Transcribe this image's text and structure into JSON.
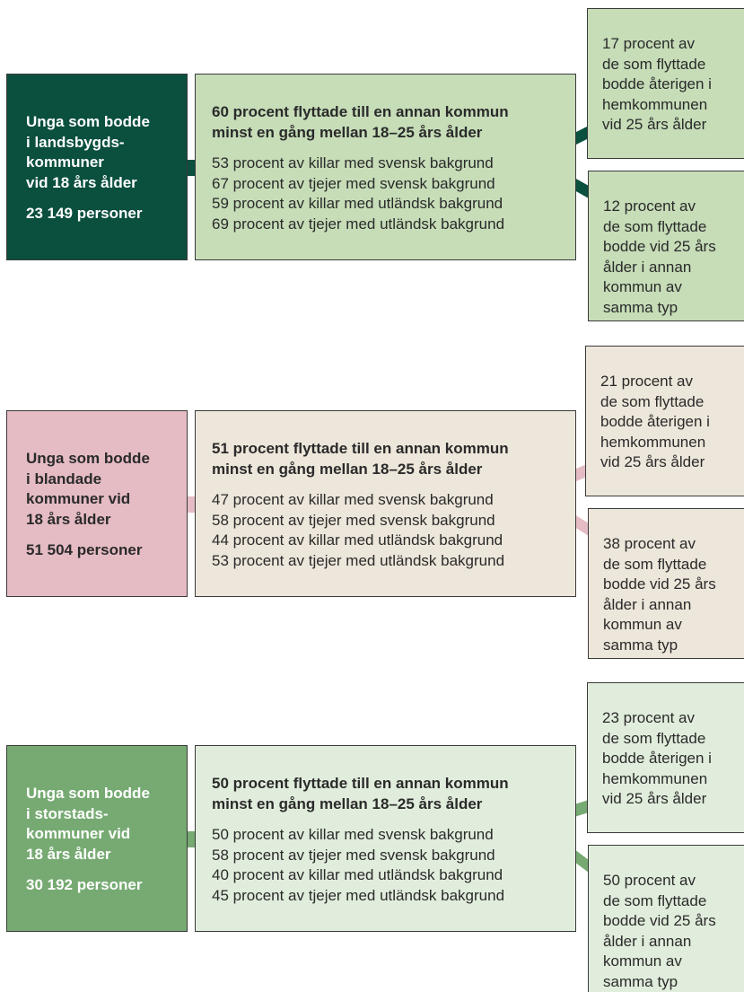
{
  "groups": [
    {
      "source": {
        "lines": [
          "Unga som bodde",
          "i landsbygds-",
          "kommuner",
          "vid 18 års ålder"
        ],
        "count": "23 149 personer"
      },
      "summary": {
        "heading": [
          "60 procent flyttade till en annan kommun",
          "minst en gång mellan 18–25 års ålder"
        ],
        "items": [
          "53 procent av killar med svensk bakgrund",
          "67 procent av tjejer med svensk bakgrund",
          "59 procent av killar med utländsk bakgrund",
          "69 procent av tjejer med utländsk bakgrund"
        ]
      },
      "outcomes": [
        {
          "lines": [
            "17 procent av",
            "de som flyttade",
            "bodde återigen i",
            "hemkommunen",
            "vid 25 års ålder"
          ]
        },
        {
          "lines": [
            "12 procent av",
            "de som flyttade",
            "bodde vid 25 års",
            "ålder i annan",
            "kommun av",
            "samma typ"
          ]
        }
      ]
    },
    {
      "source": {
        "lines": [
          "Unga som bodde",
          "i blandade",
          "kommuner vid",
          "18 års ålder"
        ],
        "count": "51 504 personer"
      },
      "summary": {
        "heading": [
          "51 procent flyttade till en annan kommun",
          "minst en gång mellan 18–25 års ålder"
        ],
        "items": [
          "47 procent av killar med svensk bakgrund",
          "58 procent av tjejer med svensk bakgrund",
          "44 procent av killar med utländsk bakgrund",
          "53 procent av tjejer med utländsk bakgrund"
        ]
      },
      "outcomes": [
        {
          "lines": [
            "21 procent av",
            "de som flyttade",
            "bodde återigen i",
            "hemkommunen",
            "vid 25 års ålder"
          ]
        },
        {
          "lines": [
            "38 procent av",
            "de som flyttade",
            "bodde vid 25 års",
            "ålder i annan",
            "kommun av",
            "samma typ"
          ]
        }
      ]
    },
    {
      "source": {
        "lines": [
          "Unga som bodde",
          "i storstads-",
          "kommuner vid",
          "18 års ålder"
        ],
        "count": "30 192 personer"
      },
      "summary": {
        "heading": [
          "50 procent flyttade till en annan kommun",
          "minst en gång mellan 18–25 års ålder"
        ],
        "items": [
          "50 procent av killar med svensk bakgrund",
          "58 procent av tjejer med svensk bakgrund",
          "40 procent av killar med utländsk bakgrund",
          "45 procent av tjejer med utländsk bakgrund"
        ]
      },
      "outcomes": [
        {
          "lines": [
            "23 procent av",
            "de som flyttade",
            "bodde återigen i",
            "hemkommunen",
            "vid 25 års ålder"
          ]
        },
        {
          "lines": [
            "50 procent av",
            "de som flyttade",
            "bodde vid 25 års",
            "ålder i annan",
            "kommun av",
            "samma typ"
          ]
        }
      ]
    }
  ]
}
